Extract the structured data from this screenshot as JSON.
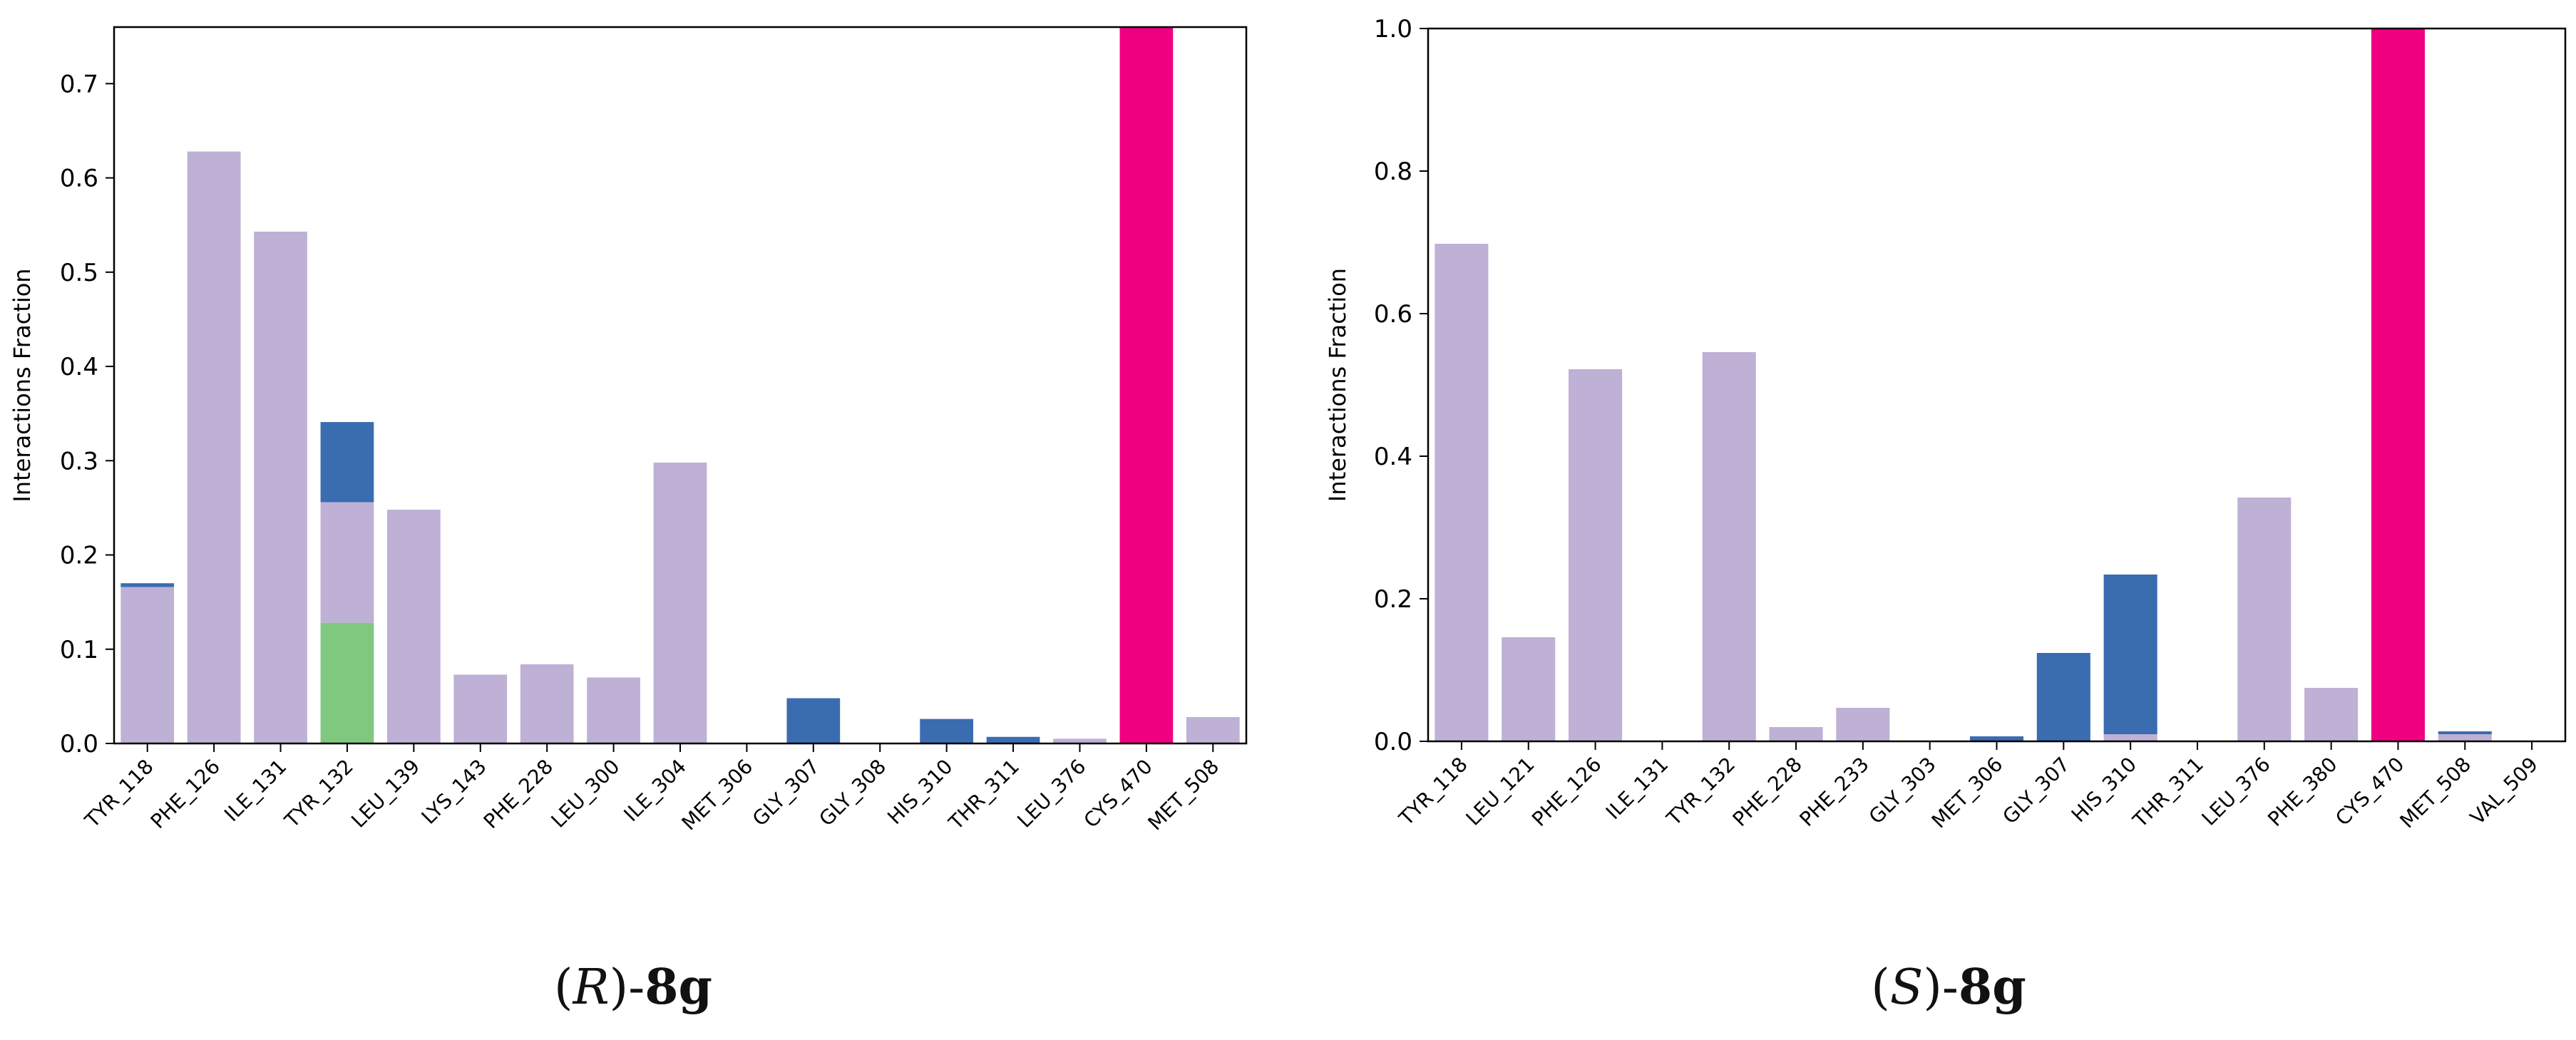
{
  "colors": {
    "hydrophobic": "#bfb0d5",
    "water_bridge": "#3a6cb0",
    "hbond": "#80c880",
    "covalent": "#f00080"
  },
  "captions": [
    {
      "pre": "(",
      "italic": "R",
      "mid": ")-",
      "bold": "8g"
    },
    {
      "pre": "(",
      "italic": "S",
      "mid": ")-",
      "bold": "8g"
    }
  ],
  "chart_data": [
    {
      "type": "bar",
      "stacked": true,
      "ylabel": "Interactions Fraction",
      "ylim": [
        0,
        0.76
      ],
      "yticks": [
        "0.0",
        "0.1",
        "0.2",
        "0.3",
        "0.4",
        "0.5",
        "0.6",
        "0.7"
      ],
      "grid": false,
      "categories": [
        "TYR_118",
        "PHE_126",
        "ILE_131",
        "TYR_132",
        "LEU_139",
        "LYS_143",
        "PHE_228",
        "LEU_300",
        "ILE_304",
        "MET_306",
        "GLY_307",
        "GLY_308",
        "HIS_310",
        "THR_311",
        "LEU_376",
        "CYS_470",
        "MET_508"
      ],
      "series": [
        {
          "color_key": "hbond",
          "values": [
            0,
            0,
            0,
            0.128,
            0,
            0,
            0,
            0,
            0,
            0,
            0,
            0,
            0,
            0,
            0,
            0,
            0
          ]
        },
        {
          "color_key": "hydrophobic",
          "values": [
            0.166,
            0.628,
            0.543,
            0.128,
            0.248,
            0.073,
            0.084,
            0.07,
            0.298,
            0,
            0,
            0,
            0,
            0,
            0.005,
            0,
            0.028
          ]
        },
        {
          "color_key": "water_bridge",
          "values": [
            0.004,
            0,
            0,
            0.085,
            0,
            0,
            0,
            0,
            0,
            0,
            0.048,
            0,
            0.026,
            0.007,
            0,
            0,
            0
          ]
        },
        {
          "color_key": "covalent",
          "values": [
            0,
            0,
            0,
            0,
            0,
            0,
            0,
            0,
            0,
            0,
            0,
            0,
            0,
            0,
            0,
            0.76,
            0
          ]
        }
      ]
    },
    {
      "type": "bar",
      "stacked": true,
      "ylabel": "Interactions Fraction",
      "ylim": [
        0,
        1.0
      ],
      "yticks": [
        "0.0",
        "0.2",
        "0.4",
        "0.6",
        "0.8",
        "1.0"
      ],
      "grid": false,
      "categories": [
        "TYR_118",
        "LEU_121",
        "PHE_126",
        "ILE_131",
        "TYR_132",
        "PHE_228",
        "PHE_233",
        "GLY_303",
        "MET_306",
        "GLY_307",
        "HIS_310",
        "THR_311",
        "LEU_376",
        "PHE_380",
        "CYS_470",
        "MET_508",
        "VAL_509"
      ],
      "series": [
        {
          "color_key": "hydrophobic",
          "values": [
            0.698,
            0.146,
            0.522,
            0,
            0.546,
            0.02,
            0.047,
            0,
            0,
            0,
            0.01,
            0,
            0.342,
            0.075,
            0,
            0.01,
            0
          ]
        },
        {
          "color_key": "water_bridge",
          "values": [
            0,
            0,
            0,
            0,
            0,
            0,
            0,
            0,
            0.007,
            0.124,
            0.224,
            0,
            0,
            0,
            0,
            0.004,
            0
          ]
        },
        {
          "color_key": "covalent",
          "values": [
            0,
            0,
            0,
            0,
            0,
            0,
            0,
            0,
            0,
            0,
            0,
            0,
            0,
            0,
            1.0,
            0,
            0
          ]
        }
      ]
    }
  ]
}
